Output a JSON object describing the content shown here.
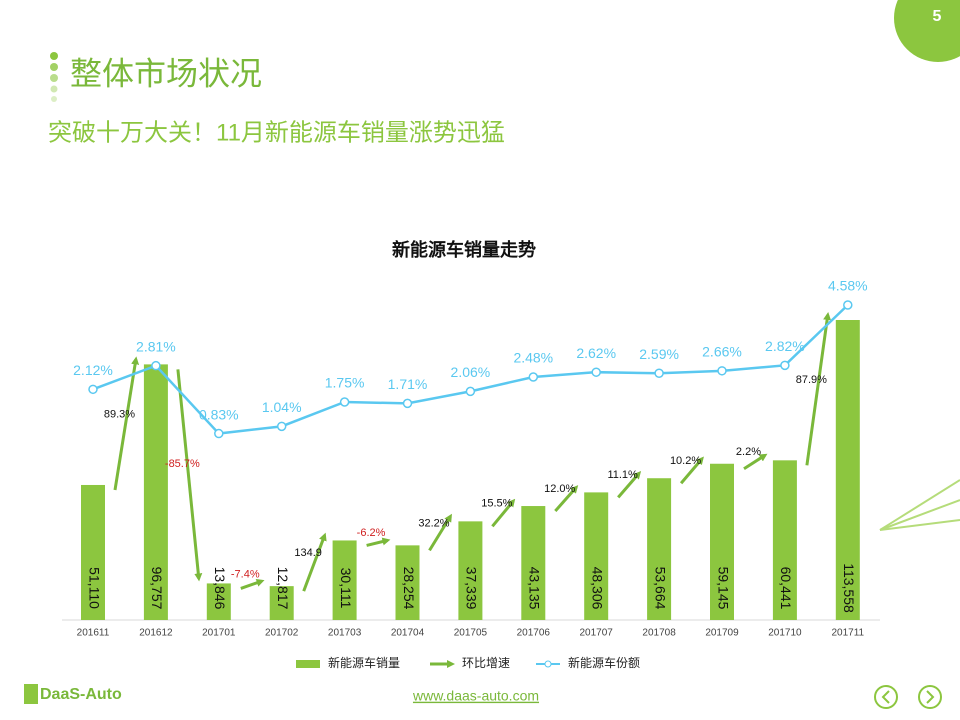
{
  "page_number": "5",
  "title": "整体市场状况",
  "subtitle": "突破十万大关！11月新能源车销量涨势迅猛",
  "logo": "DaaS-Auto",
  "url": "www.daas-auto.com",
  "chart_data": {
    "type": "bar",
    "title": "新能源车销量走势",
    "categories": [
      "201611",
      "201612",
      "201701",
      "201702",
      "201703",
      "201704",
      "201705",
      "201706",
      "201707",
      "201708",
      "201709",
      "201710",
      "201711"
    ],
    "legend": "bottom",
    "series": [
      {
        "name": "新能源车销量",
        "color": "#8cc63f",
        "values": [
          51110,
          96757,
          13846,
          12817,
          30111,
          28254,
          37339,
          43135,
          48306,
          53664,
          59145,
          60441,
          113558
        ],
        "value_labels": [
          "51,110",
          "96,757",
          "13,846",
          "12,817",
          "30,111",
          "28,254",
          "37,339",
          "43,135",
          "48,306",
          "53,664",
          "59,145",
          "60,441",
          "113,558"
        ]
      },
      {
        "name": "环比增速",
        "type": "arrow",
        "color": "#7ab83a",
        "values": [
          null,
          89.3,
          -85.7,
          -7.4,
          134.9,
          -6.2,
          32.2,
          15.5,
          12.0,
          11.1,
          10.2,
          2.2,
          87.9
        ],
        "value_labels": [
          null,
          "89.3%",
          "-85.7%",
          "-7.4%",
          "134.9",
          "-6.2%",
          "32.2%",
          "15.5%",
          "12.0%",
          "11.1%",
          "10.2%",
          "2.2%",
          "87.9%"
        ]
      },
      {
        "name": "新能源车份额",
        "type": "line",
        "axis": "y2",
        "color": "#5ac8f0",
        "values": [
          2.12,
          2.81,
          0.83,
          1.04,
          1.75,
          1.71,
          2.06,
          2.48,
          2.62,
          2.59,
          2.66,
          2.82,
          4.58
        ],
        "value_labels": [
          "2.12%",
          "2.81%",
          "0.83%",
          "1.04%",
          "1.75%",
          "1.71%",
          "2.06%",
          "2.48%",
          "2.62%",
          "2.59%",
          "2.66%",
          "2.82%",
          "4.58%"
        ]
      }
    ]
  }
}
